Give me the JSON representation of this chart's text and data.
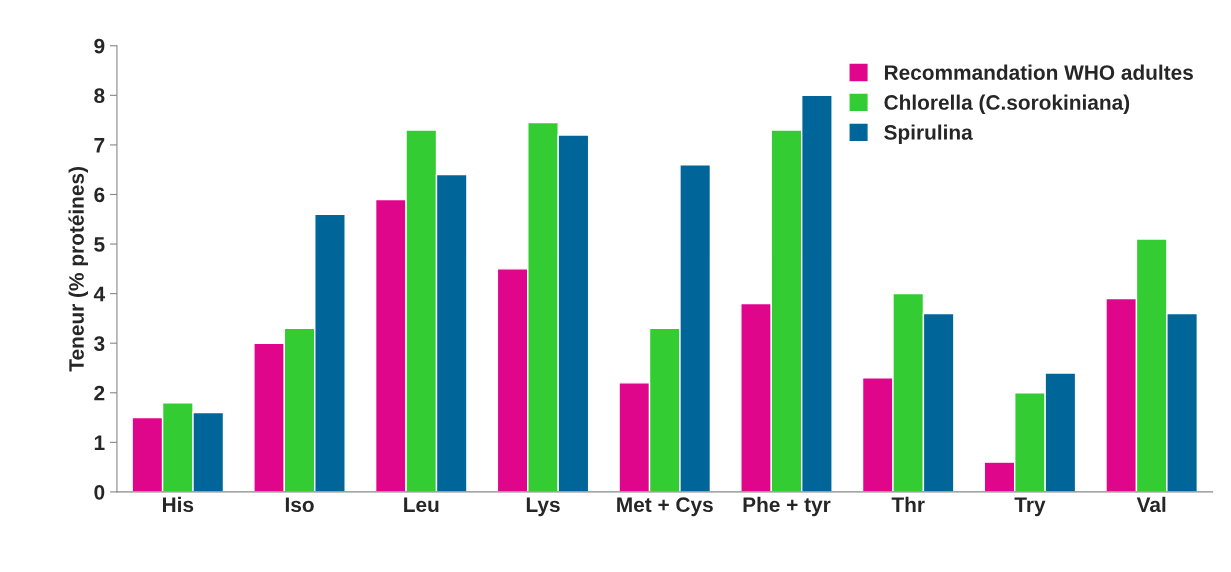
{
  "chart_data": {
    "type": "bar",
    "ylabel": "Teneur (% protéines)",
    "categories": [
      "His",
      "Iso",
      "Leu",
      "Lys",
      "Met + Cys",
      "Phe + tyr",
      "Thr",
      "Try",
      "Val"
    ],
    "series": [
      {
        "name": "Recommandation WHO adultes",
        "color": "#e0068c",
        "values": [
          1.5,
          3.0,
          5.9,
          4.5,
          2.2,
          3.8,
          2.3,
          0.6,
          3.9
        ]
      },
      {
        "name": "Chlorella (C.sorokiniana)",
        "color": "#33cc33",
        "values": [
          1.8,
          3.3,
          7.3,
          7.45,
          3.3,
          7.3,
          4.0,
          2.0,
          5.1
        ]
      },
      {
        "name": "Spirulina",
        "color": "#006699",
        "values": [
          1.6,
          5.6,
          6.4,
          7.2,
          6.6,
          8.0,
          3.6,
          2.4,
          3.6
        ]
      }
    ],
    "ylim": [
      0,
      9
    ],
    "yticks": [
      0,
      1,
      2,
      3,
      4,
      5,
      6,
      7,
      8,
      9
    ],
    "grid": false,
    "legend": "top right"
  }
}
